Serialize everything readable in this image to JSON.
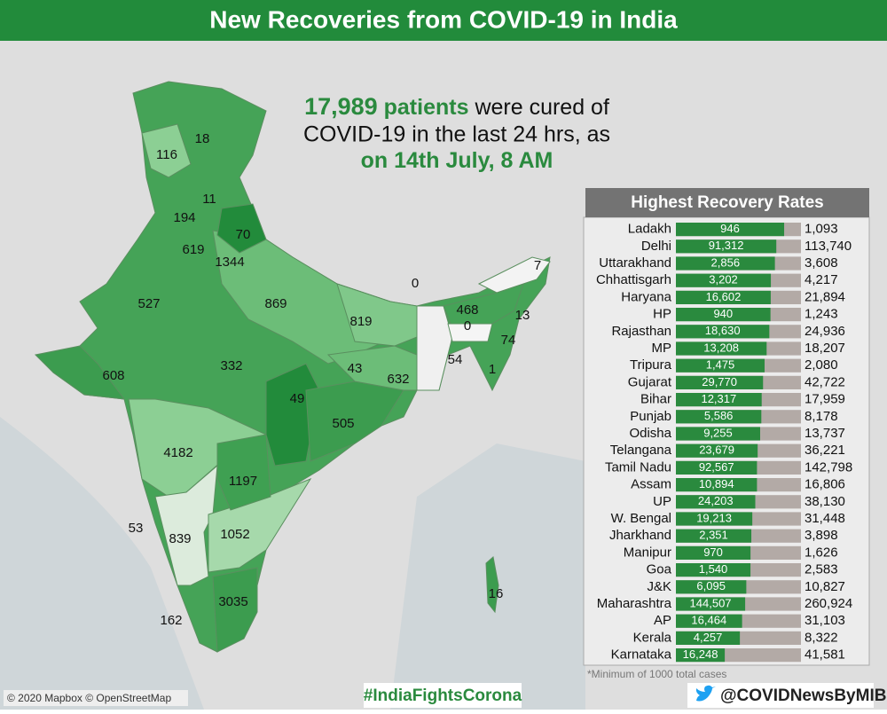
{
  "header": {
    "title": "New Recoveries from COVID-19 in India"
  },
  "headline": {
    "count": "17,989",
    "unit": "patients",
    "text_line1": "were cured of",
    "text_line2": "COVID-19 in the last 24 hrs, as",
    "date": "on 14th July, 8 AM"
  },
  "map_labels": [
    18,
    116,
    11,
    194,
    70,
    619,
    1344,
    527,
    869,
    819,
    0,
    7,
    468,
    13,
    0,
    74,
    54,
    1,
    43,
    632,
    332,
    49,
    608,
    505,
    4182,
    1197,
    53,
    839,
    1052,
    16,
    162,
    3035
  ],
  "chart_data": {
    "type": "bar",
    "title": "Highest Recovery Rates",
    "categories": [
      "Ladakh",
      "Delhi",
      "Uttarakhand",
      "Chhattisgarh",
      "Haryana",
      "HP",
      "Rajasthan",
      "MP",
      "Tripura",
      "Gujarat",
      "Bihar",
      "Punjab",
      "Odisha",
      "Telangana",
      "Tamil Nadu",
      "Assam",
      "UP",
      "W. Bengal",
      "Jharkhand",
      "Manipur",
      "Goa",
      "J&K",
      "Maharashtra",
      "AP",
      "Kerala",
      "Karnataka"
    ],
    "values": [
      946,
      91312,
      2856,
      3202,
      16602,
      940,
      18630,
      13208,
      1475,
      29770,
      12317,
      5586,
      9255,
      23679,
      92567,
      10894,
      24203,
      19213,
      2351,
      970,
      1540,
      6095,
      144507,
      16464,
      4257,
      16248
    ],
    "value_labels": [
      "946",
      "91,312",
      "2,856",
      "3,202",
      "16,602",
      "940",
      "18,630",
      "13,208",
      "1,475",
      "29,770",
      "12,317",
      "5,586",
      "9,255",
      "23,679",
      "92,567",
      "10,894",
      "24,203",
      "19,213",
      "2,351",
      "970",
      "1,540",
      "6,095",
      "144,507",
      "16,464",
      "4,257",
      "16,248"
    ],
    "totals": [
      1093,
      113740,
      3608,
      4217,
      21894,
      1243,
      24936,
      18207,
      2080,
      42722,
      17959,
      8178,
      13737,
      36221,
      142798,
      16806,
      38130,
      31448,
      3898,
      1626,
      2583,
      10827,
      260924,
      31103,
      8322,
      41581
    ],
    "total_labels": [
      "1,093",
      "113,740",
      "3,608",
      "4,217",
      "21,894",
      "1,243",
      "24,936",
      "18,207",
      "2,080",
      "42,722",
      "17,959",
      "8,178",
      "13,737",
      "36,221",
      "142,798",
      "16,806",
      "38,130",
      "31,448",
      "3,898",
      "1,626",
      "2,583",
      "10,827",
      "260,924",
      "31,103",
      "8,322",
      "41,581"
    ],
    "color": "#2a8a3e",
    "total_color": "#b3aaa6",
    "note": "*Minimum of 1000 total cases"
  },
  "footer": {
    "credit": "© 2020 Mapbox © OpenStreetMap",
    "hashtag": "#IndiaFightsCorona",
    "handle": "@COVIDNewsByMIB"
  }
}
